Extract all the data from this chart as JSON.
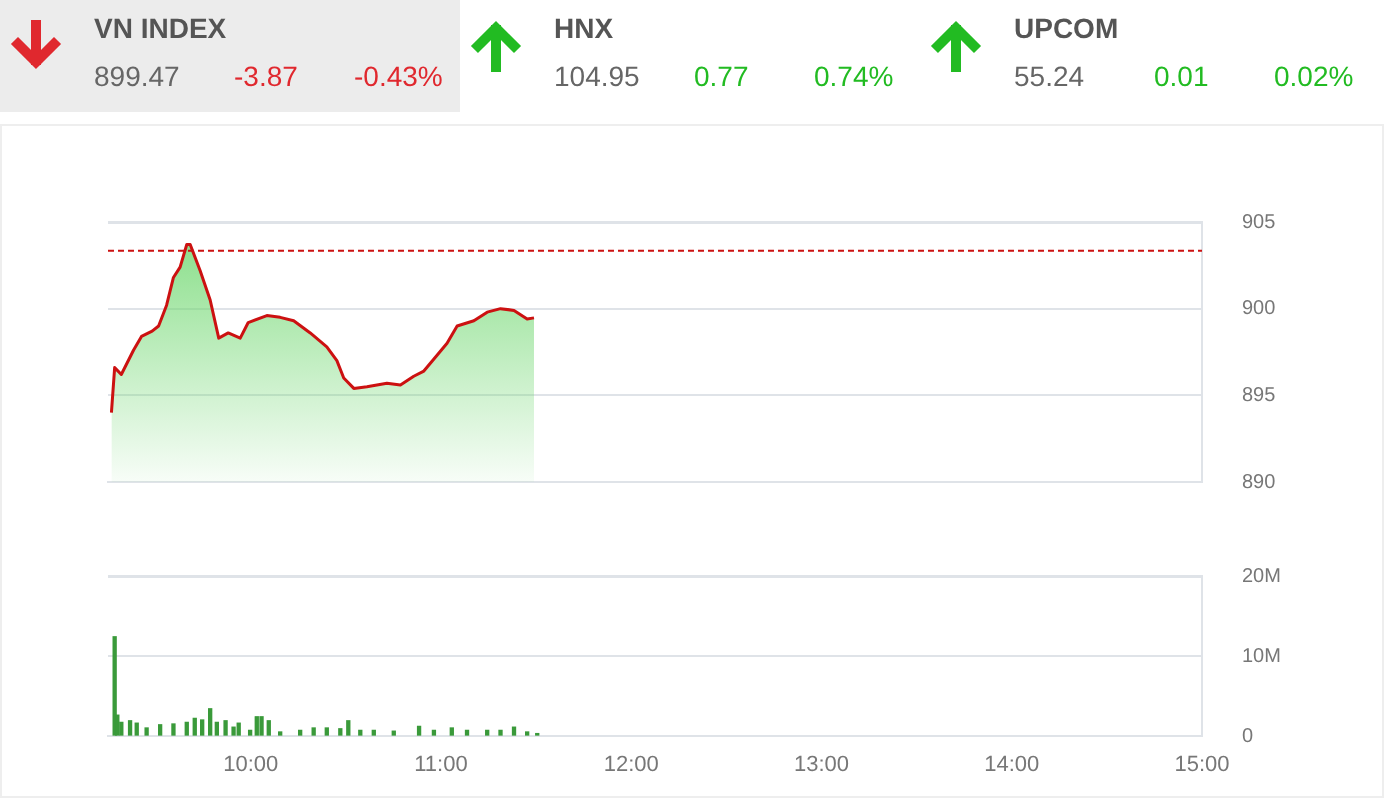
{
  "chart_data": [
    {
      "type": "other",
      "annotations": [
        "VN INDEX",
        "899.47",
        "-3.87",
        "-0.43%",
        "HNX",
        "104.95",
        "0.77",
        "0.74%",
        "UPCOM",
        "55.24",
        "0.01",
        "0.02%"
      ],
      "colors": [
        "#555555",
        "#666666",
        "#e0282e",
        "#e0282e",
        "#555555",
        "#666666",
        "#22bb22",
        "#22bb22",
        "#555555",
        "#666666",
        "#22bb22",
        "#22bb22"
      ]
    },
    {
      "type": "area",
      "x": [
        9.268,
        9.285,
        9.32,
        9.384,
        9.426,
        9.482,
        9.516,
        9.558,
        9.594,
        9.629,
        9.664,
        9.682,
        9.734,
        9.787,
        9.832,
        9.882,
        9.945,
        9.987,
        10.085,
        10.155,
        10.226,
        10.313,
        10.4,
        10.453,
        10.489,
        10.542,
        10.611,
        10.716,
        10.787,
        10.857,
        10.91,
        10.963,
        11.032,
        11.085,
        11.173,
        11.243,
        11.313,
        11.384,
        11.453,
        11.489
      ],
      "values": [
        894.0,
        896.6,
        896.2,
        897.6,
        898.4,
        898.7,
        899.0,
        900.2,
        901.8,
        902.4,
        903.7,
        903.7,
        902.2,
        900.5,
        898.3,
        898.6,
        898.3,
        899.2,
        899.6,
        899.5,
        899.3,
        898.6,
        897.8,
        897.0,
        896.0,
        895.4,
        895.5,
        895.7,
        895.6,
        896.1,
        896.4,
        897.1,
        898.0,
        899.0,
        899.3,
        899.8,
        900.0,
        899.9,
        899.4,
        899.47
      ],
      "color": "#cc1111",
      "xlim": [
        9.25,
        15
      ],
      "ylim": [
        890,
        905
      ],
      "yticks": [
        890,
        895,
        900,
        905
      ],
      "grid": "y",
      "tick_labels": "y",
      "ref_lines": [
        {
          "axis": "y",
          "value": 903.34,
          "color": "#cc1111",
          "line_style": "dashed"
        }
      ]
    },
    {
      "type": "bar",
      "x": [
        9.285,
        9.299,
        9.32,
        9.366,
        9.401,
        9.453,
        9.524,
        9.594,
        9.664,
        9.706,
        9.745,
        9.787,
        9.822,
        9.868,
        9.91,
        9.937,
        9.997,
        10.032,
        10.057,
        10.095,
        10.155,
        10.26,
        10.331,
        10.4,
        10.471,
        10.513,
        10.576,
        10.647,
        10.752,
        10.885,
        10.963,
        11.057,
        11.137,
        11.243,
        11.313,
        11.384,
        11.453,
        11.506
      ],
      "values": [
        12.4,
        2.6,
        1.7,
        1.9,
        1.6,
        1.0,
        1.4,
        1.5,
        1.7,
        2.2,
        2.0,
        3.4,
        1.7,
        1.9,
        1.1,
        1.6,
        0.7,
        2.4,
        2.4,
        1.9,
        0.5,
        0.7,
        1.0,
        1.0,
        0.9,
        1.9,
        0.7,
        0.7,
        0.6,
        1.2,
        0.7,
        1.0,
        0.7,
        0.7,
        0.7,
        1.1,
        0.5,
        0.3
      ],
      "color": "#3a9a3a",
      "xlim": [
        9.25,
        15
      ],
      "ylim": [
        0,
        20
      ],
      "yticks": [
        0,
        {
          "value": 10,
          "label": "10M"
        },
        {
          "value": 20,
          "label": "20M"
        }
      ],
      "xticks": [
        {
          "value": 10,
          "label": "10:00"
        },
        {
          "value": 11,
          "label": "11:00"
        },
        {
          "value": 12,
          "label": "12:00"
        },
        {
          "value": 13,
          "label": "13:00"
        },
        {
          "value": 14,
          "label": "14:00"
        },
        {
          "value": 15,
          "label": "15:00"
        }
      ],
      "grid": "y"
    }
  ]
}
